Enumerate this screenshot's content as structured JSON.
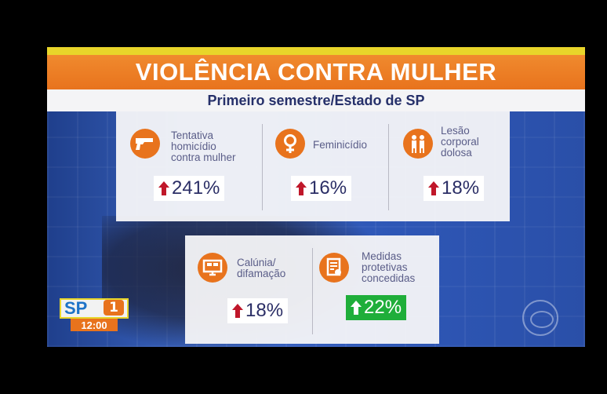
{
  "title": "VIOLÊNCIA CONTRA MULHER",
  "subtitle": "Primeiro semestre/Estado de SP",
  "cards": [
    {
      "label_lines": [
        "Tentativa",
        "homicídio",
        "contra mulher"
      ],
      "value": "241%",
      "trend": "up",
      "icon": "gun-icon"
    },
    {
      "label_lines": [
        "Feminicídio"
      ],
      "value": "16%",
      "trend": "up",
      "icon": "female-symbol-icon"
    },
    {
      "label_lines": [
        "Lesão",
        "corporal",
        "dolosa"
      ],
      "value": "18%",
      "trend": "up",
      "icon": "people-icon"
    },
    {
      "label_lines": [
        "Calúnia/",
        "difamação"
      ],
      "value": "18%",
      "trend": "up",
      "icon": "computer-icon"
    },
    {
      "label_lines": [
        "Medidas",
        "protetivas",
        "concedidas"
      ],
      "value": "22%",
      "trend": "up",
      "icon": "document-icon",
      "highlight": "#1fae3a"
    }
  ],
  "logo": {
    "text": "SP",
    "badge": "1",
    "time": "12:00"
  },
  "colors": {
    "accent": "#e8731d",
    "arrow_up": "#c0172a",
    "highlight": "#1fae3a",
    "title_bar": "#e8731d",
    "text_dark": "#26306a"
  }
}
